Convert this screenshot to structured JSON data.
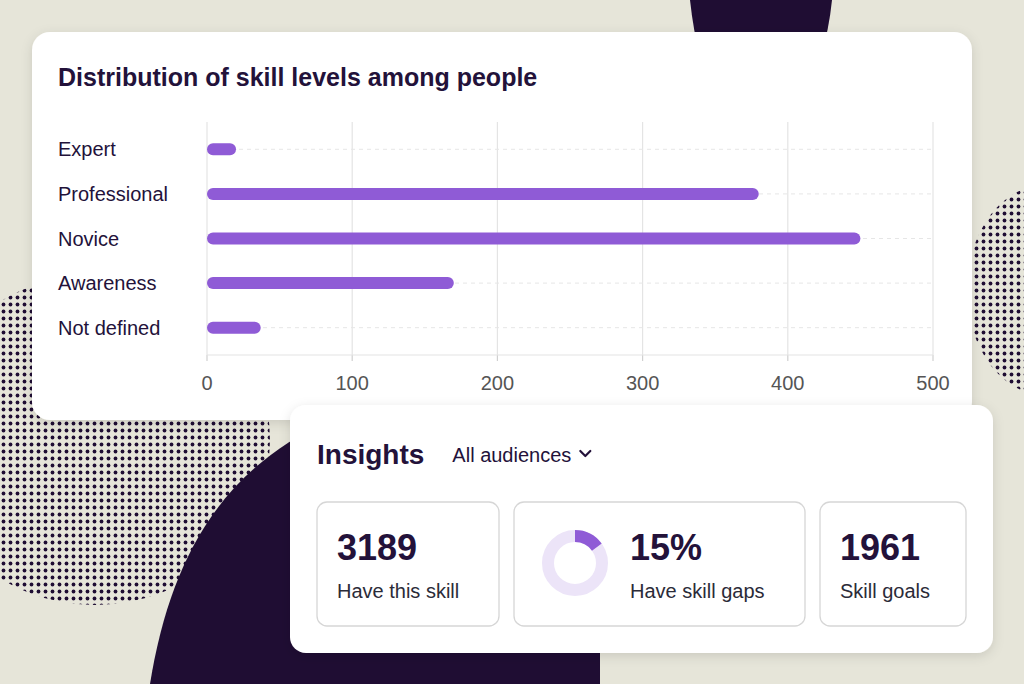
{
  "chart_data": {
    "type": "bar",
    "orientation": "horizontal",
    "title": "Distribution of skill levels among people",
    "categories": [
      "Expert",
      "Professional",
      "Novice",
      "Awareness",
      "Not defined"
    ],
    "values": [
      20,
      380,
      450,
      170,
      37
    ],
    "color": "#8f5bd6",
    "xlim": [
      0,
      500
    ],
    "xticks": [
      0,
      100,
      200,
      300,
      400,
      500
    ],
    "grid": true
  },
  "insights": {
    "title": "Insights",
    "audience": "All audiences",
    "stats": [
      {
        "value": 3189,
        "caption": "Have this skill"
      },
      {
        "value": 15,
        "value_label": "15%",
        "caption": "Have skill gaps"
      },
      {
        "value": 1961,
        "caption": "Skill goals"
      }
    ]
  }
}
